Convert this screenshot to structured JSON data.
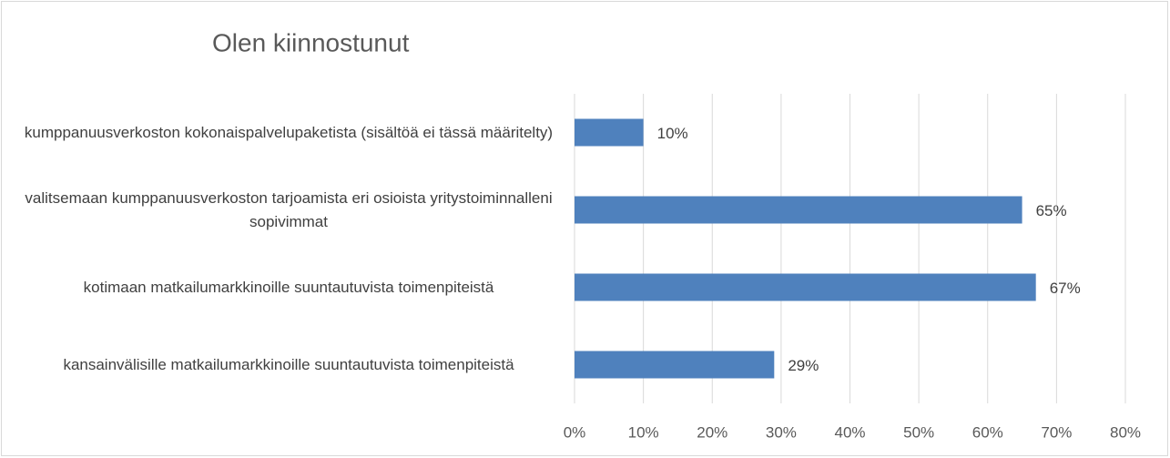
{
  "chart_data": {
    "type": "bar",
    "orientation": "horizontal",
    "title": "Olen kiinnostunut",
    "categories": [
      "kumppanuusverkoston kokonaispalvelupaketista (sisältöä ei tässä määritelty)",
      "valitsemaan kumppanuusverkoston tarjoamista eri osioista yritystoiminnalleni sopivimmat",
      "kotimaan matkailumarkkinoille suuntautuvista toimenpiteistä",
      "kansainvälisille matkailumarkkinoille suuntautuvista toimenpiteistä"
    ],
    "values": [
      10,
      65,
      67,
      29
    ],
    "value_labels": [
      "10%",
      "65%",
      "67%",
      "29%"
    ],
    "color": "#4f81bd",
    "xlim": [
      0,
      80
    ],
    "xticks": [
      {
        "value": 0,
        "label": "0%"
      },
      {
        "value": 10,
        "label": "10%"
      },
      {
        "value": 20,
        "label": "20%"
      },
      {
        "value": 30,
        "label": "30%"
      },
      {
        "value": 40,
        "label": "40%"
      },
      {
        "value": 50,
        "label": "50%"
      },
      {
        "value": 60,
        "label": "60%"
      },
      {
        "value": 70,
        "label": "70%"
      },
      {
        "value": 80,
        "label": "80%"
      }
    ],
    "grid": true
  }
}
